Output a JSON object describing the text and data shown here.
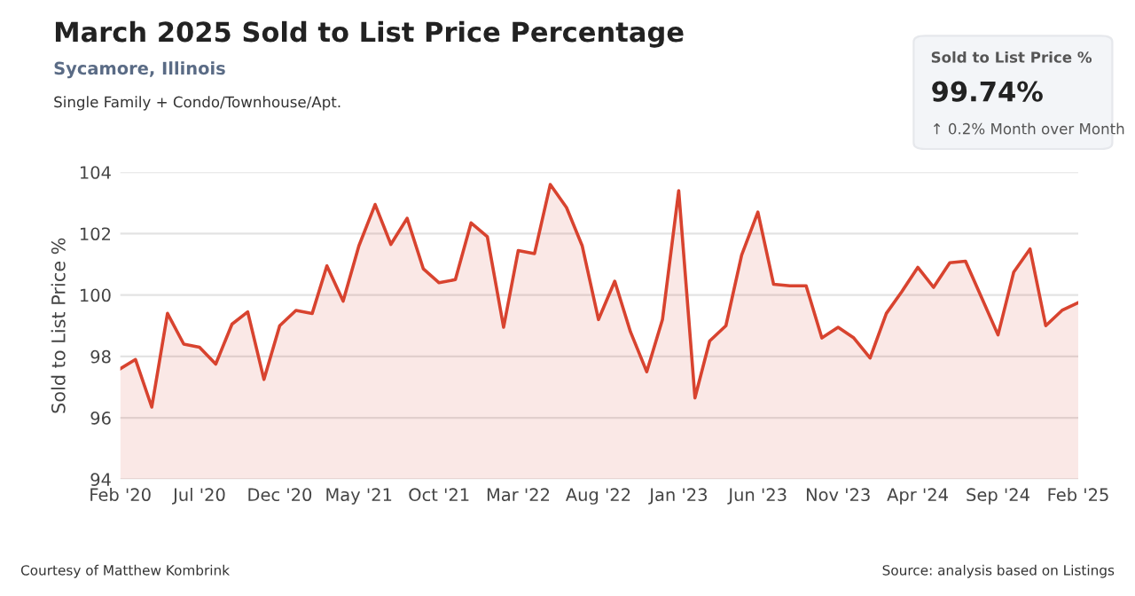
{
  "chart_data": {
    "type": "area",
    "title": "March 2025 Sold to List Price Percentage",
    "subtitle": "Sycamore, Illinois",
    "ylabel": "Sold to List Price %",
    "annotations": [
      "Single Family + Condo/Townhouse/Apt.",
      "Sold to List Price %",
      "99.74%",
      "↑ 0.2% Month over Month",
      "Courtesy of Matthew Kombrink",
      "Source: analysis based on Listings"
    ],
    "x": [
      "2020-02",
      "2020-03",
      "2020-04",
      "2020-05",
      "2020-06",
      "2020-07",
      "2020-08",
      "2020-09",
      "2020-10",
      "2020-11",
      "2020-12",
      "2021-01",
      "2021-02",
      "2021-03",
      "2021-04",
      "2021-05",
      "2021-06",
      "2021-07",
      "2021-08",
      "2021-09",
      "2021-10",
      "2021-11",
      "2021-12",
      "2022-01",
      "2022-02",
      "2022-03",
      "2022-04",
      "2022-05",
      "2022-06",
      "2022-07",
      "2022-08",
      "2022-09",
      "2022-10",
      "2022-11",
      "2022-12",
      "2023-01",
      "2023-02",
      "2023-03",
      "2023-04",
      "2023-05",
      "2023-06",
      "2023-07",
      "2023-08",
      "2023-09",
      "2023-10",
      "2023-11",
      "2023-12",
      "2024-01",
      "2024-02",
      "2024-03",
      "2024-04",
      "2024-05",
      "2024-06",
      "2024-07",
      "2024-08",
      "2024-09",
      "2024-10",
      "2024-11",
      "2024-12",
      "2025-01",
      "2025-02"
    ],
    "series": [
      {
        "color": "#d8432f",
        "values": [
          97.6,
          97.9,
          96.35,
          99.4,
          98.4,
          98.3,
          97.75,
          99.05,
          99.45,
          97.25,
          99.0,
          99.5,
          99.4,
          100.95,
          99.8,
          101.6,
          102.95,
          101.65,
          102.5,
          100.85,
          100.4,
          100.5,
          102.35,
          101.9,
          98.95,
          101.45,
          101.35,
          103.6,
          102.85,
          101.6,
          99.2,
          100.45,
          98.8,
          97.5,
          99.2,
          103.4,
          96.65,
          98.5,
          99.0,
          101.3,
          102.7,
          100.35,
          100.3,
          100.3,
          98.6,
          98.95,
          98.6,
          97.95,
          99.4,
          100.1,
          100.9,
          100.25,
          101.05,
          101.1,
          99.9,
          98.7,
          100.75,
          101.5,
          99.0,
          99.5,
          99.75
        ]
      }
    ],
    "xlim": [
      "2020-02",
      "2025-02"
    ],
    "xticks": [
      {
        "value": "2020-02",
        "label": "Feb '20"
      },
      {
        "value": "2020-07",
        "label": "Jul '20"
      },
      {
        "value": "2020-12",
        "label": "Dec '20"
      },
      {
        "value": "2021-05",
        "label": "May '21"
      },
      {
        "value": "2021-10",
        "label": "Oct '21"
      },
      {
        "value": "2022-03",
        "label": "Mar '22"
      },
      {
        "value": "2022-08",
        "label": "Aug '22"
      },
      {
        "value": "2023-01",
        "label": "Jan '23"
      },
      {
        "value": "2023-06",
        "label": "Jun '23"
      },
      {
        "value": "2023-11",
        "label": "Nov '23"
      },
      {
        "value": "2024-04",
        "label": "Apr '24"
      },
      {
        "value": "2024-09",
        "label": "Sep '24"
      },
      {
        "value": "2025-02",
        "label": "Feb '25"
      }
    ],
    "ylim": [
      94,
      104
    ],
    "yticks": [
      94,
      96,
      98,
      100,
      102,
      104
    ],
    "grid": "y",
    "legend": false,
    "marker": "none",
    "line_style": "solid"
  }
}
